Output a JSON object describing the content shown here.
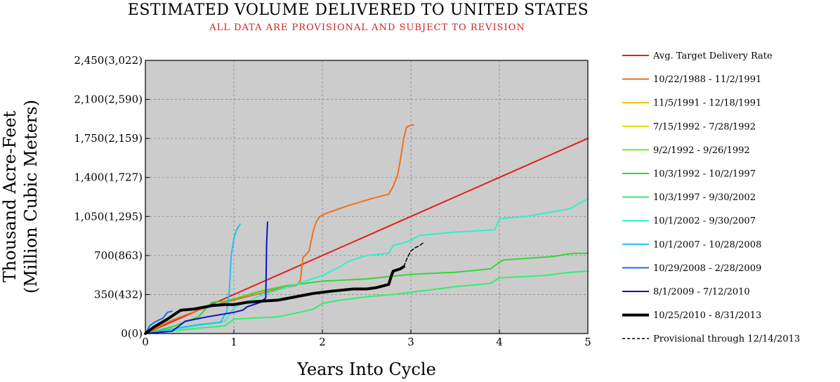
{
  "chart_data": {
    "type": "line",
    "title": "ESTIMATED VOLUME DELIVERED TO UNITED STATES",
    "subtitle": "ALL DATA ARE PROVISIONAL AND SUBJECT TO REVISION",
    "xlabel": "Years Into Cycle",
    "ylabel": [
      "Thousand Acre-Feet",
      "(Million Cubic Meters)"
    ],
    "xlim": [
      0,
      5
    ],
    "ylim": [
      0,
      2450
    ],
    "xticks": [
      {
        "value": 0,
        "label": "0"
      },
      {
        "value": 1,
        "label": "1"
      },
      {
        "value": 2,
        "label": "2"
      },
      {
        "value": 3,
        "label": "3"
      },
      {
        "value": 4,
        "label": "4"
      },
      {
        "value": 5,
        "label": "5"
      }
    ],
    "yticks": [
      {
        "value": 0,
        "label": "0(0)"
      },
      {
        "value": 350,
        "label": "350(432)"
      },
      {
        "value": 700,
        "label": "700(863)"
      },
      {
        "value": 1050,
        "label": "1,050(1,295)"
      },
      {
        "value": 1400,
        "label": "1,400(1,727)"
      },
      {
        "value": 1750,
        "label": "1,750(2,159)"
      },
      {
        "value": 2100,
        "label": "2,100(2,590)"
      },
      {
        "value": 2450,
        "label": "2,450(3,022)"
      }
    ],
    "grid": true,
    "background_color": "#cccccc",
    "legend_position": "right",
    "series": [
      {
        "name": "Avg. Target Delivery Rate",
        "color": "#e02020",
        "width": 2,
        "dash": "",
        "x": [
          0,
          5
        ],
        "y": [
          0,
          1750
        ]
      },
      {
        "name": "10/22/1988 - 11/2/1991",
        "color": "#f07018",
        "width": 2,
        "dash": "",
        "x": [
          0,
          0.3,
          0.6,
          0.9,
          1.2,
          1.5,
          1.7,
          1.75,
          1.78,
          1.85,
          1.9,
          1.93,
          1.97,
          2.05,
          2.3,
          2.6,
          2.75,
          2.8,
          2.85,
          2.88,
          2.92,
          2.95,
          3.0,
          3.03
        ],
        "y": [
          0,
          120,
          210,
          280,
          340,
          400,
          430,
          470,
          680,
          740,
          930,
          1000,
          1050,
          1080,
          1150,
          1220,
          1250,
          1320,
          1420,
          1550,
          1750,
          1850,
          1870,
          1870
        ]
      },
      {
        "name": "11/5/1991 - 12/18/1991",
        "color": "#f5c000",
        "width": 2,
        "dash": "",
        "x": [],
        "y": []
      },
      {
        "name": "7/15/1992 - 7/28/1992",
        "color": "#d8e000",
        "width": 2,
        "dash": "",
        "x": [],
        "y": []
      },
      {
        "name": "9/2/1992 - 9/26/1992",
        "color": "#80e020",
        "width": 2,
        "dash": "",
        "x": [],
        "y": []
      },
      {
        "name": "10/3/1992 - 10/2/1997",
        "color": "#30d830",
        "width": 2,
        "dash": "",
        "x": [
          0,
          0.3,
          0.6,
          0.75,
          0.9,
          1.0,
          1.3,
          1.6,
          2.0,
          2.5,
          3.0,
          3.5,
          3.9,
          4.0,
          4.05,
          4.6,
          4.75,
          4.85,
          5.0
        ],
        "y": [
          0,
          60,
          150,
          280,
          290,
          310,
          380,
          430,
          470,
          490,
          530,
          550,
          580,
          640,
          660,
          690,
          710,
          720,
          720
        ]
      },
      {
        "name": "10/3/1997 - 9/30/2002",
        "color": "#30f070",
        "width": 2,
        "dash": "",
        "x": [
          0,
          0.5,
          0.9,
          1.0,
          1.5,
          1.8,
          1.9,
          2.0,
          2.2,
          2.5,
          2.8,
          3.0,
          3.5,
          3.9,
          4.0,
          4.5,
          4.8,
          5.0
        ],
        "y": [
          0,
          40,
          70,
          130,
          150,
          200,
          220,
          270,
          300,
          330,
          350,
          370,
          420,
          450,
          500,
          520,
          550,
          560
        ]
      },
      {
        "name": "10/1/2002 - 9/30/2007",
        "color": "#30f0c8",
        "width": 2,
        "dash": "",
        "x": [
          0,
          0.5,
          0.9,
          1.0,
          1.3,
          1.5,
          1.7,
          2.0,
          2.2,
          2.3,
          2.5,
          2.75,
          2.8,
          2.95,
          3.1,
          3.5,
          3.95,
          4.0,
          4.3,
          4.8,
          5.0
        ],
        "y": [
          0,
          60,
          110,
          230,
          340,
          390,
          440,
          520,
          600,
          650,
          700,
          720,
          790,
          820,
          880,
          910,
          930,
          1030,
          1050,
          1120,
          1210
        ]
      },
      {
        "name": "10/1/2007 - 10/28/2008",
        "color": "#20c0f0",
        "width": 2,
        "dash": "",
        "x": [
          0,
          0.3,
          0.6,
          0.85,
          0.92,
          0.95,
          0.97,
          1.0,
          1.03,
          1.07
        ],
        "y": [
          0,
          40,
          80,
          100,
          200,
          400,
          700,
          850,
          930,
          980
        ]
      },
      {
        "name": "10/29/2008 - 2/28/2009",
        "color": "#1870e0",
        "width": 2,
        "dash": "",
        "x": [
          0,
          0.05,
          0.1,
          0.2,
          0.25,
          0.3
        ],
        "y": [
          0,
          70,
          100,
          140,
          190,
          200
        ]
      },
      {
        "name": "8/1/2009 - 7/12/2010",
        "color": "#1010c8",
        "width": 2,
        "dash": "",
        "x": [
          0,
          0.3,
          0.45,
          0.7,
          1.0,
          1.1,
          1.15,
          1.3,
          1.36,
          1.37,
          1.38
        ],
        "y": [
          0,
          20,
          110,
          150,
          190,
          210,
          240,
          280,
          320,
          800,
          1000
        ]
      },
      {
        "name": "10/25/2010 - 8/31/2013",
        "color": "#000000",
        "width": 4,
        "dash": "",
        "x": [
          0,
          0.1,
          0.25,
          0.4,
          0.55,
          0.75,
          0.9,
          1.0,
          1.15,
          1.3,
          1.5,
          1.7,
          1.9,
          2.1,
          2.35,
          2.5,
          2.6,
          2.75,
          2.78,
          2.8,
          2.88,
          2.92
        ],
        "y": [
          0,
          60,
          130,
          210,
          220,
          250,
          260,
          260,
          280,
          290,
          300,
          330,
          360,
          380,
          400,
          400,
          410,
          440,
          520,
          560,
          580,
          600
        ]
      },
      {
        "name": "Provisional through 12/14/2013",
        "color": "#000000",
        "width": 1.5,
        "dash": "5,3",
        "x": [
          2.92,
          2.96,
          3.0,
          3.05,
          3.1,
          3.15
        ],
        "y": [
          600,
          680,
          740,
          770,
          790,
          820
        ]
      }
    ]
  }
}
